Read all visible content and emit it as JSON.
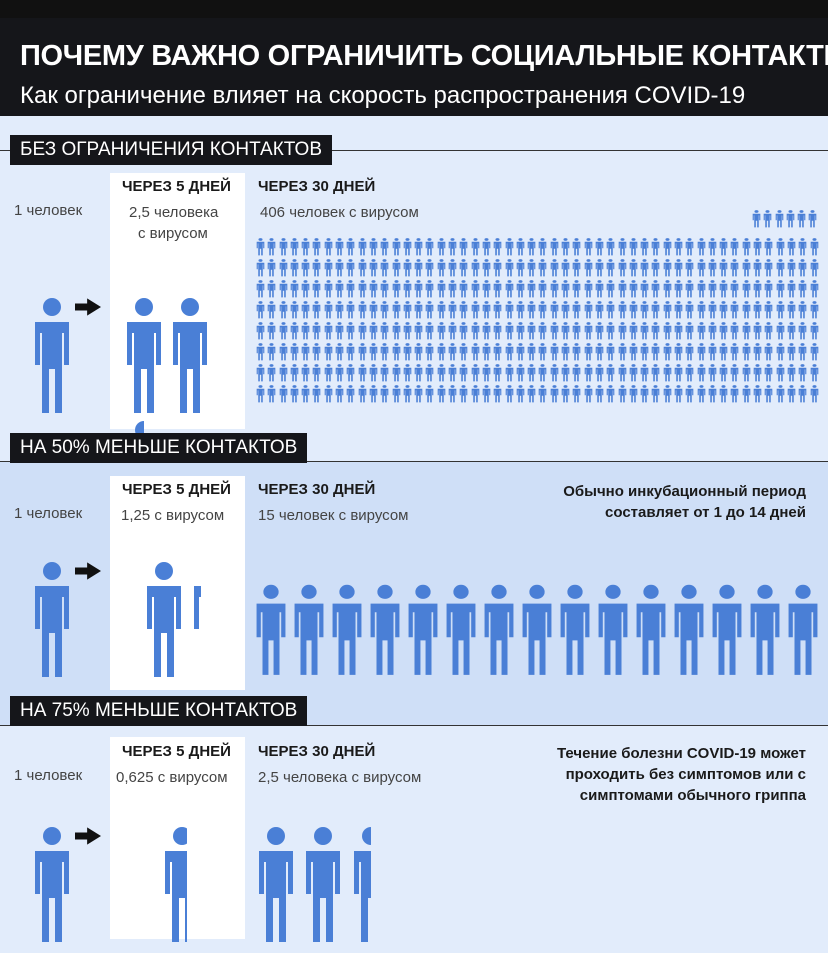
{
  "header": {
    "title": "ПОЧЕМУ ВАЖНО ОГРАНИЧИТЬ СОЦИАЛЬНЫЕ КОНТАКТЫ",
    "subtitle": "Как ограничение влияет на скорость распространения COVID-19"
  },
  "colors": {
    "person": "#4a7fd6",
    "header_bg": "#15161a",
    "band_light": "#e2ecfb",
    "band_mid": "#cfdff7"
  },
  "sections": [
    {
      "label": "БЕЗ ОГРАНИЧЕНИЯ КОНТАКТОВ",
      "start": "1 человек",
      "day5_head": "ЧЕРЕЗ 5 ДНЕЙ",
      "day5_line1": "2,5 человека",
      "day5_line2": "с вирусом",
      "day5_count": 2.5,
      "day30_head": "ЧЕРЕЗ 30 ДНЕЙ",
      "day30_text": "406 человек с вирусом",
      "day30_count": 406,
      "note_line1": "",
      "note_line2": "",
      "note_line3": ""
    },
    {
      "label": "НА 50% МЕНЬШЕ КОНТАКТОВ",
      "start": "1 человек",
      "day5_head": "ЧЕРЕЗ 5 ДНЕЙ",
      "day5_line1": "1,25 с вирусом",
      "day5_line2": "",
      "day5_count": 1.25,
      "day30_head": "ЧЕРЕЗ 30 ДНЕЙ",
      "day30_text": "15 человек с вирусом",
      "day30_count": 15,
      "note_line1": "Обычно инкубационный период",
      "note_line2": "составляет от 1 до 14 дней",
      "note_line3": ""
    },
    {
      "label": "НА 75% МЕНЬШЕ КОНТАКТОВ",
      "start": "1 человек",
      "day5_head": "ЧЕРЕЗ 5 ДНЕЙ",
      "day5_line1": "0,625 с вирусом",
      "day5_line2": "",
      "day5_count": 0.625,
      "day30_head": "ЧЕРЕЗ 30 ДНЕЙ",
      "day30_text": "2,5 человека с вирусом",
      "day30_count": 2.5,
      "note_line1": "Течение болезни COVID-19 может",
      "note_line2": "проходить без симптомов или с",
      "note_line3": "симптомами обычного гриппа"
    }
  ]
}
